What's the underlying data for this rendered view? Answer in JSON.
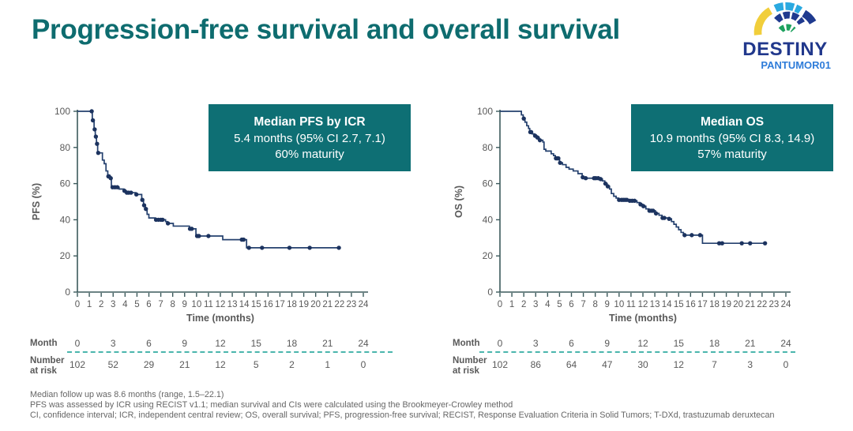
{
  "slide": {
    "title": "Progression-free survival and overall survival",
    "logo": {
      "name": "DESTINY",
      "subname": "PANTUMOR01"
    },
    "footnotes": [
      "Median follow up was 8.6 months (range, 1.5–22.1)",
      "PFS was assessed by ICR using RECIST v1.1; median survival and CIs were calculated using the Brookmeyer-Crowley method",
      "CI, confidence interval; ICR, independent central review; OS, overall survival; PFS, progression-free survival; RECIST, Response Evaluation Criteria in Solid Tumors; T-DXd, trastuzumab deruxtecan"
    ]
  },
  "style": {
    "title_teal": "#0e6c6f",
    "box_teal": "#0e6f74",
    "curve_color": "#24406e",
    "censor_color": "#1c335f",
    "axis_color": "#3c5a5c",
    "tick_text_color": "#595959",
    "dash_teal": "#4ab5ad",
    "footnote_gray": "#666666",
    "logo_navy": "#21388c",
    "logo_blue": "#2e7cd9",
    "logo_lightblue": "#2aa9e0",
    "logo_green": "#1da15e",
    "logo_yellow": "#f1ce3b"
  },
  "chart_data": [
    {
      "type": "line",
      "subtype": "kaplan-meier-step",
      "ylabel": "PFS (%)",
      "xlabel": "Time (months)",
      "xlim": [
        0,
        24
      ],
      "ylim": [
        0,
        100
      ],
      "xticks": [
        0,
        1,
        2,
        3,
        4,
        5,
        6,
        7,
        8,
        9,
        10,
        11,
        12,
        13,
        14,
        15,
        16,
        17,
        18,
        19,
        20,
        21,
        22,
        23,
        24
      ],
      "yticks": [
        0,
        20,
        40,
        60,
        80,
        100
      ],
      "grid": false,
      "annotation_box": {
        "title": "Median PFS by ICR",
        "line2": "5.4 months (95% CI 2.7, 7.1)",
        "line3": "60% maturity"
      },
      "steps": [
        [
          0,
          100
        ],
        [
          1.25,
          95
        ],
        [
          1.4,
          90
        ],
        [
          1.5,
          86
        ],
        [
          1.6,
          82
        ],
        [
          1.7,
          77
        ],
        [
          2.1,
          73
        ],
        [
          2.25,
          71
        ],
        [
          2.4,
          67
        ],
        [
          2.55,
          64
        ],
        [
          2.75,
          63
        ],
        [
          2.85,
          58
        ],
        [
          3.5,
          57
        ],
        [
          3.9,
          56
        ],
        [
          4.1,
          55
        ],
        [
          4.9,
          54
        ],
        [
          5.4,
          51
        ],
        [
          5.55,
          48
        ],
        [
          5.7,
          46
        ],
        [
          5.85,
          43
        ],
        [
          6.0,
          41
        ],
        [
          6.55,
          40
        ],
        [
          7.4,
          39
        ],
        [
          7.55,
          38
        ],
        [
          8.05,
          36.5
        ],
        [
          9.4,
          35
        ],
        [
          9.95,
          31
        ],
        [
          12.2,
          29
        ],
        [
          14.2,
          24.5
        ]
      ],
      "curve_end": [
        22.1,
        24.5
      ],
      "censor_marks": [
        [
          1.2,
          100
        ],
        [
          1.3,
          95
        ],
        [
          1.45,
          90
        ],
        [
          1.55,
          86
        ],
        [
          1.65,
          82
        ],
        [
          1.75,
          77
        ],
        [
          2.6,
          64
        ],
        [
          2.65,
          64
        ],
        [
          2.8,
          63
        ],
        [
          2.95,
          58
        ],
        [
          3.15,
          58
        ],
        [
          3.35,
          58
        ],
        [
          3.95,
          56
        ],
        [
          4.15,
          55
        ],
        [
          4.3,
          55
        ],
        [
          4.5,
          55
        ],
        [
          4.95,
          54
        ],
        [
          5.45,
          51
        ],
        [
          5.6,
          48
        ],
        [
          5.75,
          46
        ],
        [
          6.6,
          40
        ],
        [
          6.8,
          40
        ],
        [
          7.0,
          40
        ],
        [
          7.15,
          40
        ],
        [
          7.6,
          38
        ],
        [
          9.45,
          35
        ],
        [
          9.6,
          35
        ],
        [
          10.05,
          31
        ],
        [
          10.2,
          31
        ],
        [
          11.0,
          31
        ],
        [
          13.8,
          29
        ],
        [
          13.95,
          29
        ],
        [
          14.4,
          24.5
        ],
        [
          15.5,
          24.5
        ],
        [
          17.8,
          24.5
        ],
        [
          19.5,
          24.5
        ],
        [
          21.95,
          24.5
        ]
      ],
      "risk_table": {
        "row1_label": "Month",
        "row2_label": "Number at risk",
        "months": [
          0,
          3,
          6,
          9,
          12,
          15,
          18,
          21,
          24
        ],
        "number_at_risk": [
          102,
          52,
          29,
          21,
          12,
          5,
          2,
          1,
          0
        ]
      }
    },
    {
      "type": "line",
      "subtype": "kaplan-meier-step",
      "ylabel": "OS (%)",
      "xlabel": "Time (months)",
      "xlim": [
        0,
        24
      ],
      "ylim": [
        0,
        100
      ],
      "xticks": [
        0,
        1,
        2,
        3,
        4,
        5,
        6,
        7,
        8,
        9,
        10,
        11,
        12,
        13,
        14,
        15,
        16,
        17,
        18,
        19,
        20,
        21,
        22,
        23,
        24
      ],
      "yticks": [
        0,
        20,
        40,
        60,
        80,
        100
      ],
      "grid": false,
      "annotation_box": {
        "title": "Median OS",
        "line2": "10.9 months (95% CI 8.3, 14.9)",
        "line3": "57% maturity"
      },
      "steps": [
        [
          0,
          100
        ],
        [
          1.8,
          98
        ],
        [
          1.95,
          96
        ],
        [
          2.1,
          94
        ],
        [
          2.25,
          92
        ],
        [
          2.4,
          90.5
        ],
        [
          2.5,
          88.5
        ],
        [
          2.7,
          87.5
        ],
        [
          2.9,
          86.5
        ],
        [
          3.1,
          85.5
        ],
        [
          3.3,
          84
        ],
        [
          3.6,
          83
        ],
        [
          3.7,
          79
        ],
        [
          3.85,
          78
        ],
        [
          4.3,
          76.5
        ],
        [
          4.5,
          75.5
        ],
        [
          4.65,
          74
        ],
        [
          5.0,
          71.5
        ],
        [
          5.25,
          70.5
        ],
        [
          5.55,
          69
        ],
        [
          5.8,
          68
        ],
        [
          6.15,
          67
        ],
        [
          6.55,
          65.5
        ],
        [
          6.9,
          63.5
        ],
        [
          7.1,
          63
        ],
        [
          8.4,
          62.5
        ],
        [
          8.6,
          61.5
        ],
        [
          8.8,
          60
        ],
        [
          9.0,
          58.5
        ],
        [
          9.2,
          57
        ],
        [
          9.35,
          54.5
        ],
        [
          9.55,
          53
        ],
        [
          9.75,
          52
        ],
        [
          9.95,
          51
        ],
        [
          10.8,
          50.5
        ],
        [
          11.5,
          49.5
        ],
        [
          11.75,
          48.5
        ],
        [
          12.0,
          47.5
        ],
        [
          12.25,
          46
        ],
        [
          12.5,
          45
        ],
        [
          13.05,
          43.5
        ],
        [
          13.35,
          42.5
        ],
        [
          13.6,
          41
        ],
        [
          14.15,
          40.5
        ],
        [
          14.4,
          39
        ],
        [
          14.6,
          37.5
        ],
        [
          14.8,
          36
        ],
        [
          15.0,
          34.5
        ],
        [
          15.2,
          33
        ],
        [
          15.4,
          31.5
        ],
        [
          17.0,
          27
        ]
      ],
      "curve_end": [
        22.3,
        27
      ],
      "censor_marks": [
        [
          2.0,
          96
        ],
        [
          2.55,
          88.5
        ],
        [
          2.62,
          88.5
        ],
        [
          2.95,
          86.5
        ],
        [
          3.15,
          85.5
        ],
        [
          3.35,
          84
        ],
        [
          4.7,
          74
        ],
        [
          4.8,
          74
        ],
        [
          4.9,
          74
        ],
        [
          5.05,
          71.5
        ],
        [
          6.95,
          63.5
        ],
        [
          7.2,
          63
        ],
        [
          7.9,
          63
        ],
        [
          8.05,
          63
        ],
        [
          8.25,
          63
        ],
        [
          8.45,
          62.5
        ],
        [
          8.85,
          60
        ],
        [
          9.05,
          58.5
        ],
        [
          10.0,
          51
        ],
        [
          10.2,
          51
        ],
        [
          10.35,
          51
        ],
        [
          10.5,
          51
        ],
        [
          10.65,
          51
        ],
        [
          10.9,
          50.5
        ],
        [
          11.1,
          50.5
        ],
        [
          11.3,
          50.5
        ],
        [
          11.8,
          48.5
        ],
        [
          12.05,
          47.5
        ],
        [
          12.55,
          45
        ],
        [
          12.7,
          45
        ],
        [
          12.85,
          45
        ],
        [
          13.1,
          43.5
        ],
        [
          13.65,
          41
        ],
        [
          13.8,
          41
        ],
        [
          14.2,
          40.5
        ],
        [
          15.5,
          31.5
        ],
        [
          16.1,
          31.5
        ],
        [
          16.8,
          31.5
        ],
        [
          18.4,
          27
        ],
        [
          18.65,
          27
        ],
        [
          20.3,
          27
        ],
        [
          21.0,
          27
        ],
        [
          22.25,
          27
        ]
      ],
      "risk_table": {
        "row1_label": "Month",
        "row2_label": "Number at risk",
        "months": [
          0,
          3,
          6,
          9,
          12,
          15,
          18,
          21,
          24
        ],
        "number_at_risk": [
          102,
          86,
          64,
          47,
          30,
          12,
          7,
          3,
          0
        ]
      }
    }
  ]
}
